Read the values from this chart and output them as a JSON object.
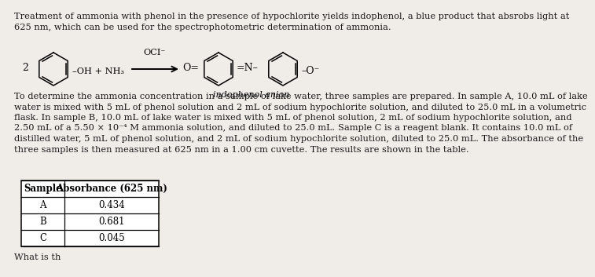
{
  "background_color": "#f0ede8",
  "title_text_l1": "Treatment of ammonia with phenol in the presence of hypochlorite yields indophenol, a blue product that absrobs light at",
  "title_text_l2": "625 nm, which can be used for the spectrophotometric determination of ammonia.",
  "body_text": "To determine the ammonia concentration in a sample of lake water, three samples are prepared. In sample A, 10.0 mL of lake\nwater is mixed with 5 mL of phenol solution and 2 mL of sodium hypochlorite solution, and diluted to 25.0 mL in a volumetric\nflask. In sample B, 10.0 mL of lake water is mixed with 5 mL of phenol solution, 2 mL of sodium hypochlorite solution, and\n2.50 mL of a 5.50 × 10⁻⁴ M ammonia solution, and diluted to 25.0 mL. Sample C is a reagent blank. It contains 10.0 mL of\ndistilled water, 5 mL of phenol solution, and 2 mL of sodium hypochlorite solution, diluted to 25.0 mL. The absorbance of the\nthree samples is then measured at 625 nm in a 1.00 cm cuvette. The results are shown in the table.",
  "table_headers": [
    "Sample",
    "Absorbance (625 nm)"
  ],
  "table_rows": [
    [
      "A",
      "0.434"
    ],
    [
      "B",
      "0.681"
    ],
    [
      "C",
      "0.045"
    ]
  ],
  "bottom_text": "What is th",
  "text_color": "#1a1a1a",
  "font_size_title": 8.2,
  "font_size_body": 8.2,
  "font_size_table": 8.5,
  "chem_label_2": "2",
  "chem_label_reactant": "–OH + NH₃",
  "chem_label_oci": "OCI⁻",
  "chem_label_o_eq": "O=",
  "chem_label_n": "=N–",
  "chem_label_o_neg": "–O⁻",
  "chem_label_indophenol": "indophenol anion"
}
